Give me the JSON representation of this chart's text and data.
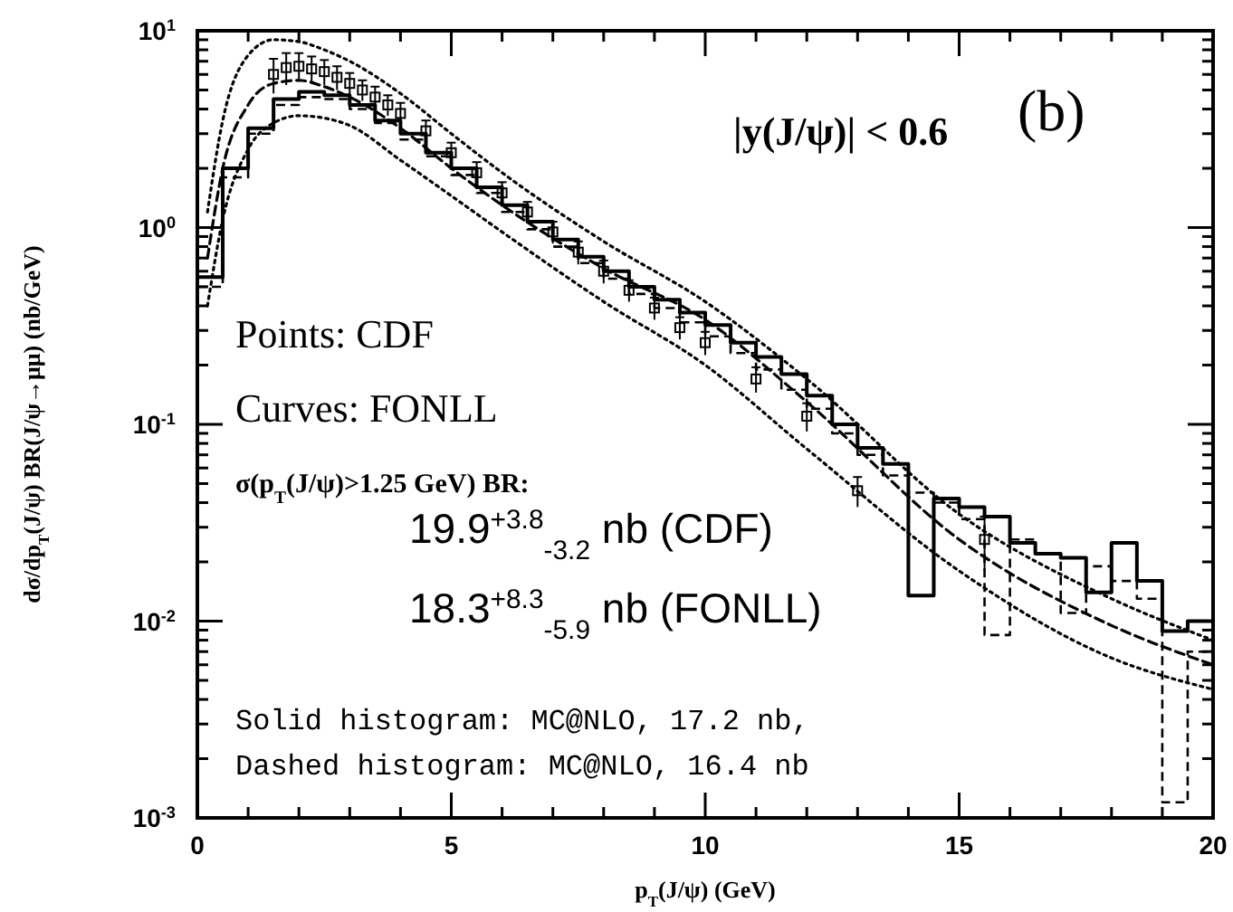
{
  "chart_data": {
    "type": "line",
    "xlabel": "p$_{T}$(J/ψ) (GeV)",
    "ylabel": "dσ/dp$_{T}$(J/ψ) BR(J/ψ→μμ) (nb/GeV)",
    "log": "y",
    "grid": false,
    "xlim": [
      0,
      20
    ],
    "ylim": [
      0.001,
      10
    ],
    "xticks": [
      0,
      {
        "value": 1,
        "label": null
      },
      {
        "value": 2,
        "label": null
      },
      {
        "value": 3,
        "label": null
      },
      {
        "value": 4,
        "label": null
      },
      5,
      {
        "value": 6,
        "label": null
      },
      {
        "value": 7,
        "label": null
      },
      {
        "value": 8,
        "label": null
      },
      {
        "value": 9,
        "label": null
      },
      10,
      {
        "value": 11,
        "label": null
      },
      {
        "value": 12,
        "label": null
      },
      {
        "value": 13,
        "label": null
      },
      {
        "value": 14,
        "label": null
      },
      15,
      {
        "value": 16,
        "label": null
      },
      {
        "value": 17,
        "label": null
      },
      {
        "value": 18,
        "label": null
      },
      {
        "value": 19,
        "label": null
      },
      20
    ],
    "yticks": [
      {
        "value": 0.001,
        "label": "10$^{-3}$"
      },
      {
        "value": 0.002,
        "label": null
      },
      {
        "value": 0.003,
        "label": null
      },
      {
        "value": 0.004,
        "label": null
      },
      {
        "value": 0.005,
        "label": null
      },
      {
        "value": 0.006,
        "label": null
      },
      {
        "value": 0.007,
        "label": null
      },
      {
        "value": 0.008,
        "label": null
      },
      {
        "value": 0.009,
        "label": null
      },
      {
        "value": 0.01,
        "label": "10$^{-2}$"
      },
      {
        "value": 0.02,
        "label": null
      },
      {
        "value": 0.03,
        "label": null
      },
      {
        "value": 0.04,
        "label": null
      },
      {
        "value": 0.05,
        "label": null
      },
      {
        "value": 0.06,
        "label": null
      },
      {
        "value": 0.07,
        "label": null
      },
      {
        "value": 0.08,
        "label": null
      },
      {
        "value": 0.09,
        "label": null
      },
      {
        "value": 0.1,
        "label": "10$^{-1}$"
      },
      {
        "value": 0.2,
        "label": null
      },
      {
        "value": 0.3,
        "label": null
      },
      {
        "value": 0.4,
        "label": null
      },
      {
        "value": 0.5,
        "label": null
      },
      {
        "value": 0.6,
        "label": null
      },
      {
        "value": 0.7,
        "label": null
      },
      {
        "value": 0.8,
        "label": null
      },
      {
        "value": 0.9,
        "label": null
      },
      {
        "value": 1,
        "label": "10$^{0}$"
      },
      {
        "value": 2,
        "label": null
      },
      {
        "value": 3,
        "label": null
      },
      {
        "value": 4,
        "label": null
      },
      {
        "value": 5,
        "label": null
      },
      {
        "value": 6,
        "label": null
      },
      {
        "value": 7,
        "label": null
      },
      {
        "value": 8,
        "label": null
      },
      {
        "value": 9,
        "label": null
      },
      {
        "value": 10,
        "label": "10$^{1}$"
      }
    ],
    "series": [
      {
        "line_style": "dotted",
        "color": "#000000",
        "x": [
          0.2,
          0.5,
          1,
          1.5,
          2,
          2.5,
          3,
          4,
          5,
          6,
          8,
          10,
          12,
          15,
          18,
          20
        ],
        "values": [
          1.2,
          3.5,
          7.5,
          9.0,
          8.8,
          8.0,
          7.0,
          4.8,
          3.0,
          1.9,
          0.85,
          0.42,
          0.17,
          0.035,
          0.013,
          0.008
        ]
      },
      {
        "line_style": "dashed",
        "color": "#000000",
        "x": [
          0.2,
          0.5,
          1,
          1.5,
          2,
          2.5,
          3,
          4,
          5,
          6,
          8,
          10,
          12,
          15,
          18,
          20
        ],
        "values": [
          0.7,
          2.0,
          4.2,
          5.4,
          5.6,
          5.2,
          4.6,
          3.2,
          2.0,
          1.3,
          0.62,
          0.34,
          0.13,
          0.026,
          0.0095,
          0.006
        ]
      },
      {
        "line_style": "dotted",
        "color": "#000000",
        "x": [
          0.2,
          0.5,
          1,
          1.5,
          2,
          2.5,
          3,
          4,
          5,
          6,
          8,
          10,
          12,
          15,
          18,
          20
        ],
        "values": [
          0.4,
          1.1,
          2.5,
          3.4,
          3.7,
          3.6,
          3.3,
          2.2,
          1.45,
          0.95,
          0.42,
          0.2,
          0.075,
          0.018,
          0.0065,
          0.0045
        ]
      },
      {
        "type": "step",
        "line_style": "solid",
        "color": "#000000",
        "x": [
          0,
          0.5,
          1,
          1.5,
          2,
          2.5,
          3,
          3.5,
          4,
          4.5,
          5,
          5.5,
          6,
          6.5,
          7,
          7.5,
          8,
          8.5,
          9,
          9.5,
          10,
          10.5,
          11,
          11.5,
          12,
          12.5,
          13,
          13.5,
          14,
          14.5,
          15,
          15.5,
          16,
          16.5,
          17,
          17.5,
          18,
          18.5,
          19,
          19.5,
          20
        ],
        "values": [
          0.56,
          2.0,
          3.2,
          4.5,
          4.9,
          4.7,
          4.2,
          3.5,
          3.0,
          2.4,
          2.0,
          1.6,
          1.3,
          1.07,
          0.87,
          0.71,
          0.6,
          0.5,
          0.43,
          0.37,
          0.32,
          0.26,
          0.22,
          0.18,
          0.14,
          0.1,
          0.076,
          0.063,
          0.0135,
          0.042,
          0.038,
          0.034,
          0.025,
          0.022,
          0.021,
          0.014,
          0.025,
          0.016,
          0.0089,
          0.01,
          0.01
        ]
      },
      {
        "type": "step",
        "line_style": "dashed",
        "color": "#000000",
        "x": [
          0,
          0.5,
          1,
          1.5,
          2,
          2.5,
          3,
          3.5,
          4,
          4.5,
          5,
          5.5,
          6,
          6.5,
          7,
          7.5,
          8,
          8.5,
          9,
          9.5,
          10,
          10.5,
          11,
          11.5,
          12,
          12.5,
          13,
          13.5,
          14,
          14.5,
          15,
          15.5,
          16,
          16.5,
          17,
          17.5,
          18,
          18.5,
          19,
          19.5,
          20
        ],
        "values": [
          0.5,
          1.8,
          3.0,
          4.2,
          4.6,
          4.5,
          4.0,
          3.4,
          2.8,
          2.3,
          1.85,
          1.5,
          1.2,
          0.98,
          0.8,
          0.66,
          0.55,
          0.46,
          0.39,
          0.33,
          0.28,
          0.23,
          0.19,
          0.15,
          0.12,
          0.09,
          0.07,
          0.055,
          0.045,
          0.04,
          0.033,
          0.0085,
          0.026,
          0.022,
          0.011,
          0.019,
          0.016,
          0.013,
          0.0012,
          0.007,
          0.007
        ]
      },
      {
        "type": "scatter",
        "marker": "square",
        "color": "#000000",
        "x": [
          1.5,
          1.75,
          2,
          2.25,
          2.5,
          2.75,
          3,
          3.25,
          3.5,
          3.75,
          4,
          4.5,
          5,
          5.5,
          6,
          6.5,
          7,
          7.5,
          8,
          8.5,
          9,
          9.5,
          10,
          11,
          12,
          13,
          15.5
        ],
        "values": [
          6.0,
          6.5,
          6.6,
          6.4,
          6.2,
          5.8,
          5.4,
          5.0,
          4.6,
          4.2,
          3.8,
          3.1,
          2.4,
          1.9,
          1.5,
          1.2,
          0.95,
          0.75,
          0.6,
          0.48,
          0.39,
          0.31,
          0.26,
          0.17,
          0.11,
          0.046,
          0.026
        ],
        "errors": [
          1.2,
          1.2,
          1.1,
          1.0,
          0.9,
          0.8,
          0.7,
          0.6,
          0.6,
          0.5,
          0.5,
          0.4,
          0.3,
          0.25,
          0.2,
          0.15,
          0.12,
          0.1,
          0.08,
          0.06,
          0.05,
          0.04,
          0.035,
          0.025,
          0.018,
          0.008,
          0.008
        ]
      }
    ],
    "annotations": [
      "|y(J/ψ)| < 0.6",
      "(b)",
      "Points: CDF",
      "Curves: FONLL",
      "σ(p$_{T}$(J/ψ)>1.25 GeV) BR:",
      "19.9$^{+3.8}$$_{-3.2}$ nb (CDF)",
      "18.3$^{+8.3}$$_{-5.9}$ nb (FONLL)",
      "Solid histogram: MC@NLO, 17.2 nb,",
      "Dashed histogram: MC@NLO, 16.4 nb"
    ]
  }
}
